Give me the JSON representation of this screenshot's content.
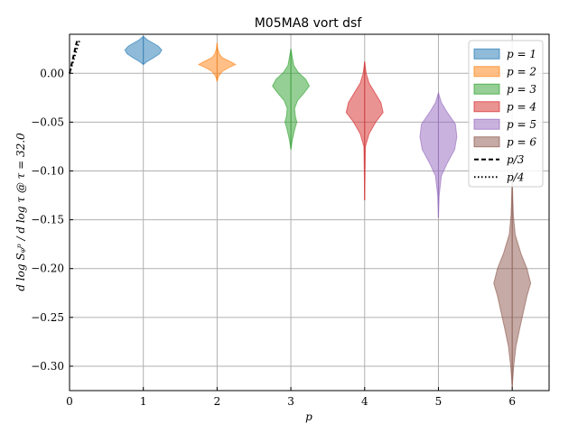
{
  "chart_data": {
    "type": "violin",
    "title": "M05MA8 vort dsf",
    "xlabel": "p",
    "ylabel": "d log Sᵩᵖ / d log τ @ τ = 32.0",
    "xlim": [
      0,
      6.5
    ],
    "ylim": [
      -0.325,
      0.04
    ],
    "xticks": [
      0,
      1,
      2,
      3,
      4,
      5,
      6
    ],
    "xtick_labels": [
      "0",
      "1",
      "2",
      "3",
      "4",
      "5",
      "6"
    ],
    "yticks": [
      0.0,
      -0.05,
      -0.1,
      -0.15,
      -0.2,
      -0.25,
      -0.3
    ],
    "ytick_labels": [
      "0.00",
      "−0.05",
      "−0.10",
      "−0.15",
      "−0.20",
      "−0.25",
      "−0.30"
    ],
    "grid": true,
    "legend_position": "top-right",
    "series": [
      {
        "name": "p = 1",
        "x": 1,
        "color": "#1f77b4",
        "min": 0.009,
        "max": 0.038,
        "profile": [
          [
            0.009,
            0.0
          ],
          [
            0.012,
            0.05
          ],
          [
            0.016,
            0.14
          ],
          [
            0.02,
            0.22
          ],
          [
            0.024,
            0.25
          ],
          [
            0.028,
            0.2
          ],
          [
            0.031,
            0.13
          ],
          [
            0.034,
            0.06
          ],
          [
            0.036,
            0.03
          ],
          [
            0.038,
            0.0
          ]
        ]
      },
      {
        "name": "p = 2",
        "x": 2,
        "color": "#ff7f0e",
        "min": -0.008,
        "max": 0.031,
        "profile": [
          [
            -0.008,
            0.0
          ],
          [
            -0.003,
            0.02
          ],
          [
            0.002,
            0.07
          ],
          [
            0.006,
            0.16
          ],
          [
            0.009,
            0.25
          ],
          [
            0.012,
            0.18
          ],
          [
            0.016,
            0.07
          ],
          [
            0.02,
            0.03
          ],
          [
            0.025,
            0.01
          ],
          [
            0.031,
            0.0
          ]
        ]
      },
      {
        "name": "p = 3",
        "x": 3,
        "color": "#2ca02c",
        "min": -0.078,
        "max": 0.025,
        "profile": [
          [
            -0.078,
            0.0
          ],
          [
            -0.068,
            0.02
          ],
          [
            -0.058,
            0.05
          ],
          [
            -0.05,
            0.08
          ],
          [
            -0.044,
            0.06
          ],
          [
            -0.036,
            0.05
          ],
          [
            -0.028,
            0.09
          ],
          [
            -0.02,
            0.18
          ],
          [
            -0.013,
            0.25
          ],
          [
            -0.006,
            0.2
          ],
          [
            0.001,
            0.1
          ],
          [
            0.008,
            0.04
          ],
          [
            0.016,
            0.02
          ],
          [
            0.025,
            0.0
          ]
        ]
      },
      {
        "name": "p = 4",
        "x": 4,
        "color": "#d62728",
        "min": -0.13,
        "max": 0.012,
        "profile": [
          [
            -0.13,
            0.0
          ],
          [
            -0.1,
            0.005
          ],
          [
            -0.075,
            0.01
          ],
          [
            -0.062,
            0.06
          ],
          [
            -0.05,
            0.15
          ],
          [
            -0.04,
            0.25
          ],
          [
            -0.03,
            0.22
          ],
          [
            -0.02,
            0.14
          ],
          [
            -0.01,
            0.06
          ],
          [
            0.0,
            0.02
          ],
          [
            0.012,
            0.0
          ]
        ]
      },
      {
        "name": "p = 5",
        "x": 5,
        "color": "#9467bd",
        "min": -0.148,
        "max": -0.02,
        "profile": [
          [
            -0.148,
            0.0
          ],
          [
            -0.125,
            0.01
          ],
          [
            -0.105,
            0.04
          ],
          [
            -0.092,
            0.12
          ],
          [
            -0.078,
            0.22
          ],
          [
            -0.065,
            0.25
          ],
          [
            -0.052,
            0.23
          ],
          [
            -0.04,
            0.12
          ],
          [
            -0.03,
            0.04
          ],
          [
            -0.02,
            0.0
          ]
        ]
      },
      {
        "name": "p = 6",
        "x": 6,
        "color": "#8c564b",
        "min": -0.322,
        "max": -0.1,
        "profile": [
          [
            -0.322,
            0.0
          ],
          [
            -0.3,
            0.02
          ],
          [
            -0.28,
            0.05
          ],
          [
            -0.262,
            0.1
          ],
          [
            -0.245,
            0.15
          ],
          [
            -0.228,
            0.2
          ],
          [
            -0.215,
            0.25
          ],
          [
            -0.2,
            0.2
          ],
          [
            -0.185,
            0.12
          ],
          [
            -0.165,
            0.04
          ],
          [
            -0.145,
            0.015
          ],
          [
            -0.12,
            0.005
          ],
          [
            -0.1,
            0.0
          ]
        ]
      }
    ],
    "reference_lines": [
      {
        "name": "p/3",
        "style": "dashed",
        "x": [
          0,
          0.1
        ],
        "y": [
          0.0,
          0.033
        ]
      },
      {
        "name": "p/4",
        "style": "dotted",
        "x": [
          0,
          0.135
        ],
        "y": [
          0.0,
          0.034
        ]
      }
    ]
  },
  "legend": {
    "items": [
      {
        "label": "p = 1",
        "kind": "patch",
        "color": "#1f77b4"
      },
      {
        "label": "p = 2",
        "kind": "patch",
        "color": "#ff7f0e"
      },
      {
        "label": "p = 3",
        "kind": "patch",
        "color": "#2ca02c"
      },
      {
        "label": "p = 4",
        "kind": "patch",
        "color": "#d62728"
      },
      {
        "label": "p = 5",
        "kind": "patch",
        "color": "#9467bd"
      },
      {
        "label": "p = 6",
        "kind": "patch",
        "color": "#8c564b"
      },
      {
        "label": "p/3",
        "kind": "dashed",
        "color": "#000000"
      },
      {
        "label": "p/4",
        "kind": "dotted",
        "color": "#000000"
      }
    ]
  }
}
